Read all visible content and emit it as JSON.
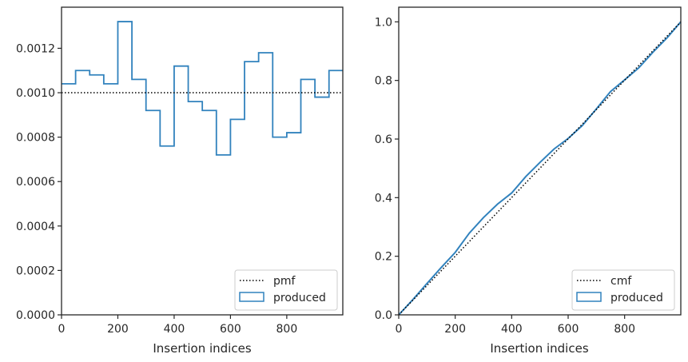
{
  "chart_data": [
    {
      "type": "line",
      "xlabel": "Insertion indices",
      "ylabel": "",
      "xlim": [
        0,
        999
      ],
      "ylim": [
        0,
        0.001385
      ],
      "x_ticks": [
        "0",
        "200",
        "400",
        "600",
        "800"
      ],
      "y_ticks": [
        "0.0000",
        "0.0002",
        "0.0004",
        "0.0006",
        "0.0008",
        "0.0010",
        "0.0012"
      ],
      "grid": false,
      "legend_position": "lower-right",
      "series": [
        {
          "name": "pmf",
          "style": "dotted",
          "color": "#000000",
          "x": [
            0,
            999
          ],
          "values": [
            0.001,
            0.001
          ]
        },
        {
          "name": "produced",
          "style": "step-histogram",
          "color": "#3182bd",
          "bin_edges": [
            0,
            50,
            100,
            150,
            200,
            250,
            300,
            350,
            400,
            450,
            500,
            550,
            600,
            650,
            700,
            750,
            800,
            850,
            900,
            950,
            999
          ],
          "values": [
            0.00104,
            0.0011,
            0.00108,
            0.00104,
            0.00132,
            0.00106,
            0.00092,
            0.00076,
            0.00112,
            0.00096,
            0.00092,
            0.00072,
            0.00088,
            0.00114,
            0.00118,
            0.0008,
            0.00082,
            0.00106,
            0.00098,
            0.0011
          ]
        }
      ]
    },
    {
      "type": "line",
      "xlabel": "Insertion indices",
      "ylabel": "",
      "xlim": [
        0,
        999
      ],
      "ylim": [
        0,
        1.05
      ],
      "x_ticks": [
        "0",
        "200",
        "400",
        "600",
        "800"
      ],
      "y_ticks": [
        "0.0",
        "0.2",
        "0.4",
        "0.6",
        "0.8",
        "1.0"
      ],
      "grid": false,
      "legend_position": "lower-right",
      "series": [
        {
          "name": "cmf",
          "style": "dotted",
          "color": "#000000",
          "x": [
            0,
            999
          ],
          "values": [
            0,
            1.0
          ]
        },
        {
          "name": "produced",
          "style": "step-line",
          "color": "#3182bd",
          "x": [
            0,
            50,
            100,
            150,
            200,
            250,
            300,
            350,
            400,
            450,
            500,
            550,
            600,
            650,
            700,
            750,
            800,
            850,
            900,
            950,
            999
          ],
          "values": [
            0,
            0.052,
            0.107,
            0.161,
            0.213,
            0.279,
            0.332,
            0.378,
            0.416,
            0.472,
            0.52,
            0.566,
            0.602,
            0.646,
            0.703,
            0.762,
            0.802,
            0.843,
            0.896,
            0.945,
            1.0
          ]
        }
      ]
    }
  ]
}
